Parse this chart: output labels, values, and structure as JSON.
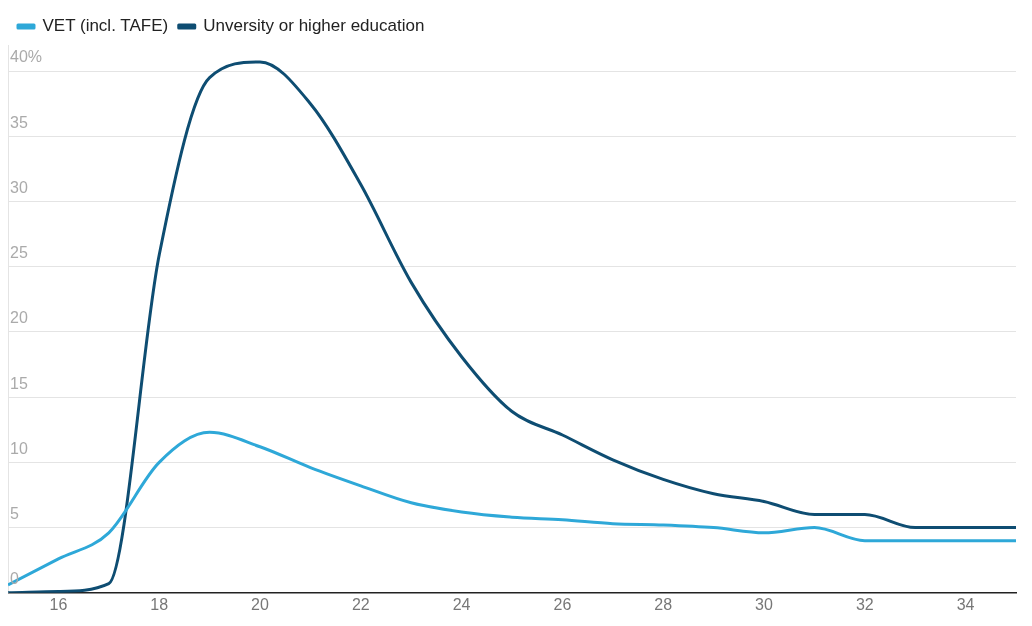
{
  "chart_data": {
    "type": "line",
    "x": [
      15,
      16,
      17,
      18,
      19,
      20,
      21,
      22,
      23,
      24,
      25,
      26,
      27,
      28,
      29,
      30,
      31,
      32,
      33,
      34,
      35
    ],
    "series": [
      {
        "name": "VET (incl. TAFE)",
        "color": "#2ea8d8",
        "values": [
          0.6,
          2.6,
          4.6,
          10,
          12.3,
          11.2,
          9.6,
          8.2,
          6.9,
          6.2,
          5.8,
          5.6,
          5.3,
          5.2,
          5.0,
          4.6,
          5.0,
          4.0,
          4.0,
          4.0,
          4.0
        ]
      },
      {
        "name": "Unversity or higher education",
        "color": "#0e4d72",
        "values": [
          0,
          0.1,
          0.7,
          25.9,
          39.5,
          40.7,
          37.5,
          31.3,
          23.8,
          18.1,
          13.9,
          12.1,
          10.2,
          8.7,
          7.6,
          7.0,
          6.0,
          6.0,
          5.0,
          5.0,
          5.0
        ]
      }
    ],
    "xlim": [
      15,
      35
    ],
    "xticks": [
      16,
      18,
      20,
      22,
      24,
      26,
      28,
      30,
      32,
      34
    ],
    "ylim": [
      0,
      42
    ],
    "yticks": [
      0,
      5,
      10,
      15,
      20,
      25,
      30,
      35,
      {
        "value": 40,
        "label": "40%"
      }
    ],
    "grid": "y",
    "legend": "top left",
    "marker": "none",
    "line_style": "solid"
  }
}
